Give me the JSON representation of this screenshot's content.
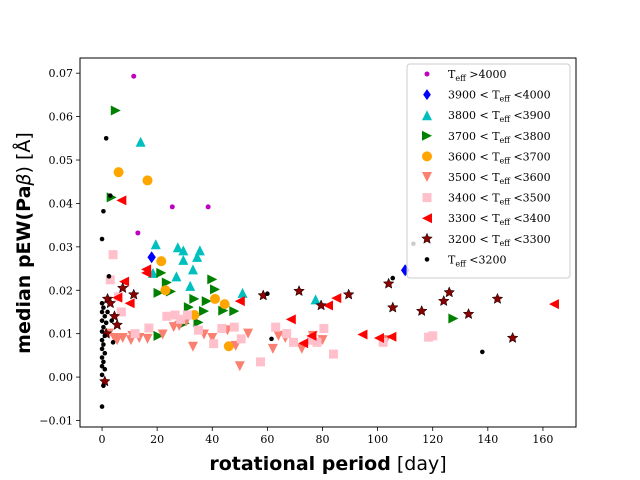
{
  "chart_data": {
    "type": "scatter",
    "title": "",
    "xlabel": {
      "bold": "rotational period",
      "rest": " [day]"
    },
    "ylabel": {
      "bold": "median pEW(Pa",
      "greek": "β",
      "rest": ") [Å]"
    },
    "xlim": [
      -8,
      172
    ],
    "ylim": [
      -0.0115,
      0.0735
    ],
    "xticks": [
      0,
      20,
      40,
      60,
      80,
      100,
      120,
      140,
      160
    ],
    "xtick_labels": [
      "0",
      "20",
      "40",
      "60",
      "80",
      "100",
      "120",
      "140",
      "160"
    ],
    "yticks": [
      -0.01,
      0.0,
      0.01,
      0.02,
      0.03,
      0.04,
      0.05,
      0.06,
      0.07
    ],
    "ytick_labels": [
      "−0.01",
      "0.00",
      "0.01",
      "0.02",
      "0.03",
      "0.04",
      "0.05",
      "0.06",
      "0.07"
    ],
    "grid": false,
    "legend_position": "top-right",
    "series": [
      {
        "name": "T_eff >4000",
        "lhs": "",
        "rhs": " >4000",
        "marker": "circle",
        "size": 2.5,
        "color": "#bf00bf",
        "points": [
          [
            11.5,
            0.0693
          ],
          [
            25.5,
            0.0392
          ],
          [
            38.5,
            0.0392
          ],
          [
            13,
            0.0332
          ]
        ]
      },
      {
        "name": "3900 < T_eff <4000",
        "lhs": "3900 < ",
        "rhs": " <4000",
        "marker": "diamond",
        "size": 6,
        "color": "#0000ff",
        "points": [
          [
            18,
            0.0276
          ],
          [
            110,
            0.0246
          ]
        ]
      },
      {
        "name": "3800 < T_eff <3900",
        "lhs": "3800 < ",
        "rhs": " <3900",
        "marker": "triangle-up",
        "size": 5,
        "color": "#00bfbf",
        "points": [
          [
            14,
            0.0542
          ],
          [
            19.5,
            0.0306
          ],
          [
            27.5,
            0.0299
          ],
          [
            29.5,
            0.0292
          ],
          [
            35.5,
            0.0292
          ],
          [
            34.5,
            0.0277
          ],
          [
            29.5,
            0.027
          ],
          [
            33,
            0.0248
          ],
          [
            27,
            0.0232
          ],
          [
            18.5,
            0.024
          ],
          [
            77.5,
            0.0179
          ],
          [
            51,
            0.0194
          ],
          [
            32,
            0.021
          ]
        ]
      },
      {
        "name": "3700 < T_eff <3800",
        "lhs": "3700 < ",
        "rhs": " <3800",
        "marker": "triangle-right",
        "size": 5,
        "color": "#008000",
        "points": [
          [
            5,
            0.0614
          ],
          [
            3.5,
            0.0414
          ],
          [
            21.5,
            0.024
          ],
          [
            23.5,
            0.0218
          ],
          [
            40,
            0.0225
          ],
          [
            20.5,
            0.0194
          ],
          [
            41,
            0.0202
          ],
          [
            25,
            0.0197
          ],
          [
            33.5,
            0.018
          ],
          [
            38,
            0.0175
          ],
          [
            31.5,
            0.0161
          ],
          [
            37,
            0.0152
          ],
          [
            44,
            0.0153
          ],
          [
            48,
            0.0152
          ],
          [
            30,
            0.0124
          ],
          [
            35,
            0.0126
          ],
          [
            20.5,
            0.0095
          ],
          [
            127.5,
            0.0135
          ]
        ]
      },
      {
        "name": "3600 < T_eff <3700",
        "lhs": "3600 < ",
        "rhs": " <3700",
        "marker": "circle",
        "size": 5,
        "color": "#ffa500",
        "points": [
          [
            6,
            0.0472
          ],
          [
            16.5,
            0.0453
          ],
          [
            21.5,
            0.0267
          ],
          [
            23,
            0.02
          ],
          [
            41,
            0.018
          ],
          [
            44.5,
            0.0168
          ],
          [
            33.5,
            0.0143
          ],
          [
            46,
            0.0071
          ]
        ]
      },
      {
        "name": "3500 < T_eff <3600",
        "lhs": "3500 < ",
        "rhs": " <3600",
        "marker": "triangle-down",
        "size": 5,
        "color": "#fa8072",
        "points": [
          [
            2.5,
            0.01
          ],
          [
            4.5,
            0.009
          ],
          [
            5.5,
            0.0085
          ],
          [
            7.5,
            0.009
          ],
          [
            10.5,
            0.0085
          ],
          [
            11,
            0.0095
          ],
          [
            13.5,
            0.009
          ],
          [
            16.5,
            0.0088
          ],
          [
            22,
            0.0098
          ],
          [
            26,
            0.0115
          ],
          [
            28,
            0.0118
          ],
          [
            30.5,
            0.0128
          ],
          [
            33,
            0.007
          ],
          [
            37,
            0.0098
          ],
          [
            40,
            0.009
          ],
          [
            45.5,
            0.0108
          ],
          [
            48.5,
            0.0072
          ],
          [
            50,
            0.0025
          ],
          [
            53,
            0.01
          ],
          [
            62,
            0.0065
          ],
          [
            64,
            0.0095
          ],
          [
            66.5,
            0.009
          ],
          [
            72.5,
            0.0065
          ],
          [
            76.5,
            0.0095
          ],
          [
            80,
            0.0085
          ],
          [
            103,
            0.0085
          ]
        ]
      },
      {
        "name": "3400 < T_eff <3500",
        "lhs": "3400 < ",
        "rhs": " <3500",
        "marker": "square",
        "size": 4.5,
        "color": "#ffc0cb",
        "points": [
          [
            3,
            0.0224
          ],
          [
            4,
            0.0282
          ],
          [
            6,
            0.0185
          ],
          [
            7,
            0.015
          ],
          [
            12,
            0.01
          ],
          [
            17,
            0.0113
          ],
          [
            23.5,
            0.014
          ],
          [
            26.5,
            0.0143
          ],
          [
            28.5,
            0.0133
          ],
          [
            31,
            0.0143
          ],
          [
            35,
            0.0108
          ],
          [
            40.5,
            0.0077
          ],
          [
            43.5,
            0.0112
          ],
          [
            48,
            0.0115
          ],
          [
            50.5,
            0.0088
          ],
          [
            57.5,
            0.0035
          ],
          [
            63,
            0.0115
          ],
          [
            67,
            0.01
          ],
          [
            69.5,
            0.008
          ],
          [
            76,
            0.0085
          ],
          [
            78,
            0.008
          ],
          [
            80.5,
            0.0112
          ],
          [
            84,
            0.0053
          ],
          [
            102,
            0.008
          ],
          [
            118.5,
            0.0092
          ],
          [
            120,
            0.0095
          ]
        ]
      },
      {
        "name": "3300 < T_eff <3400",
        "lhs": "3300 < ",
        "rhs": " <3400",
        "marker": "triangle-left",
        "size": 5,
        "color": "#ff0000",
        "points": [
          [
            7,
            0.0407
          ],
          [
            16,
            0.024
          ],
          [
            8,
            0.022
          ],
          [
            16,
            0.0248
          ],
          [
            5.5,
            0.0183
          ],
          [
            10,
            0.017
          ],
          [
            50,
            0.0175
          ],
          [
            68.5,
            0.0133
          ],
          [
            73,
            0.0078
          ],
          [
            76,
            0.0095
          ],
          [
            82,
            0.0165
          ],
          [
            85,
            0.0182
          ],
          [
            94.5,
            0.0098
          ],
          [
            100.5,
            0.009
          ],
          [
            105,
            0.0093
          ],
          [
            164,
            0.0168
          ]
        ]
      },
      {
        "name": "3200 < T_eff <3300",
        "lhs": "3200 < ",
        "rhs": " <3300",
        "marker": "star",
        "size": 5.5,
        "color": "#8b0000",
        "points": [
          [
            1,
            -0.001
          ],
          [
            1.5,
            0.01
          ],
          [
            2,
            0.018
          ],
          [
            3,
            0.017
          ],
          [
            4.5,
            0.014
          ],
          [
            5.5,
            0.012
          ],
          [
            7.5,
            0.0205
          ],
          [
            11.5,
            0.019
          ],
          [
            58.5,
            0.0188
          ],
          [
            71.5,
            0.0198
          ],
          [
            79.5,
            0.0165
          ],
          [
            89.5,
            0.019
          ],
          [
            104,
            0.0215
          ],
          [
            105.5,
            0.016
          ],
          [
            116,
            0.0152
          ],
          [
            124,
            0.0175
          ],
          [
            126,
            0.0195
          ],
          [
            133,
            0.0145
          ],
          [
            143.5,
            0.018
          ],
          [
            149,
            0.009
          ]
        ]
      },
      {
        "name": "T_eff <3200",
        "lhs": "",
        "rhs": " <3200",
        "marker": "circle",
        "size": 2.3,
        "color": "#000000",
        "points": [
          [
            1.5,
            0.055
          ],
          [
            3,
            0.0418
          ],
          [
            0.5,
            0.0382
          ],
          [
            0,
            0.0318
          ],
          [
            2.5,
            0.0232
          ],
          [
            0,
            0.017
          ],
          [
            0.5,
            0.016
          ],
          [
            0,
            0.015
          ],
          [
            1,
            0.014
          ],
          [
            0,
            0.013
          ],
          [
            1.5,
            0.0125
          ],
          [
            0.5,
            0.0115
          ],
          [
            0,
            0.0105
          ],
          [
            1,
            0.0095
          ],
          [
            0,
            0.0085
          ],
          [
            0.5,
            0.0075
          ],
          [
            0,
            0.0065
          ],
          [
            1,
            0.0055
          ],
          [
            0,
            0.0045
          ],
          [
            0.5,
            0.0035
          ],
          [
            0,
            0.0025
          ],
          [
            1,
            0.0018
          ],
          [
            0,
            0.0005
          ],
          [
            0.5,
            -0.002
          ],
          [
            0,
            -0.0068
          ],
          [
            2,
            0.015
          ],
          [
            3.5,
            0.013
          ],
          [
            4,
            0.008
          ],
          [
            60,
            0.0192
          ],
          [
            61.5,
            0.0088
          ],
          [
            105.5,
            0.0228
          ],
          [
            113,
            0.0307
          ],
          [
            138,
            0.0058
          ]
        ]
      }
    ]
  }
}
